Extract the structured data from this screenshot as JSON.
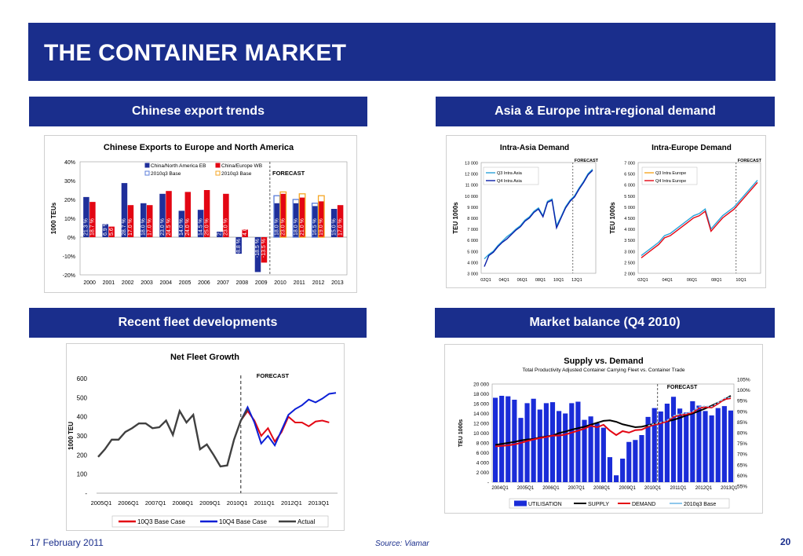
{
  "slide": {
    "title": "THE CONTAINER MARKET",
    "date": "17 February 2011",
    "source": "Source: Viamar",
    "page": "20"
  },
  "sections": {
    "chinese_export": "Chinese export trends",
    "intra_regional": "Asia & Europe intra-regional demand",
    "fleet": "Recent fleet developments",
    "market_balance": "Market balance (Q4 2010)"
  },
  "colors": {
    "brand": "#1a2e8c",
    "blue": "#1f2f9a",
    "red": "#e30613",
    "dark": "#404040",
    "line_blue": "#0b1fd6"
  },
  "chart_data": [
    {
      "id": "chinese_exports",
      "type": "bar",
      "title": "Chinese Exports to Europe and North America",
      "ylabel": "1000 TEUs",
      "ylim": [
        -20,
        40
      ],
      "yticks": [
        "-20%",
        "-10%",
        "0%",
        "10%",
        "20%",
        "30%",
        "40%"
      ],
      "annotation": "FORECAST",
      "categories": [
        "2000",
        "2001",
        "2002",
        "2003",
        "2004",
        "2005",
        "2006",
        "2007",
        "2008",
        "2009",
        "2010",
        "2011",
        "2012",
        "2013"
      ],
      "series": [
        {
          "name": "China/North America EB",
          "values": [
            21.3,
            6.9,
            28.7,
            18.0,
            23.0,
            14.0,
            14.5,
            2.9,
            -8.8,
            -18.5,
            18.0,
            18.0,
            16.5,
            15.0
          ]
        },
        {
          "name": "China/Europe WB",
          "values": [
            18.7,
            5.6,
            17.0,
            17.0,
            24.5,
            24.0,
            25.0,
            23.0,
            4.0,
            -13.5,
            23.0,
            21.0,
            19.0,
            17.0
          ]
        },
        {
          "name": "2010q3 Base",
          "values": [
            null,
            null,
            null,
            null,
            null,
            null,
            null,
            null,
            null,
            null,
            22,
            20,
            18,
            null
          ]
        },
        {
          "name": "2010q3 Base",
          "values": [
            null,
            null,
            null,
            null,
            null,
            null,
            null,
            null,
            null,
            null,
            24,
            23,
            22,
            null
          ]
        }
      ],
      "bar_labels": {
        "China/North America EB": [
          "21.3 %",
          "6.9 %",
          "28.7 %",
          "18.0 %",
          "23.0 %",
          "14.0 %",
          "14.5 %",
          "2.9 %",
          "-8.8 %",
          "-18.5 %",
          "18.0 %",
          "18.0 %",
          "16.5 %",
          "15.0 %"
        ],
        "China/Europe WB": [
          "18.7 %",
          "5.6 %",
          "17.0 %",
          "17.0 %",
          "24.5 %",
          "24.0 %",
          "25.0 %",
          "23.0 %",
          "4.0 %",
          "-13.5 %",
          "23.0 %",
          "21.0 %",
          "19.0 %",
          "17.0 %"
        ]
      }
    },
    {
      "id": "intra_asia",
      "type": "line",
      "title": "Intra-Asia Demand",
      "ylabel": "TEU 1000s",
      "ylim": [
        3000,
        13000
      ],
      "yticks": [
        "3 000",
        "4 000",
        "5 000",
        "6 000",
        "7 000",
        "8 000",
        "9 000",
        "10 000",
        "11 000",
        "12 000",
        "13 000"
      ],
      "xticks": [
        "02Q1",
        "04Q1",
        "06Q1",
        "08Q1",
        "10Q1",
        "12Q1"
      ],
      "annotation": "FORECAST",
      "series": [
        {
          "name": "Q3 Intra Asia",
          "values": [
            4300,
            4700,
            5000,
            5500,
            5900,
            6300,
            6600,
            7000,
            7300,
            7800,
            8100,
            8600,
            8900,
            8200,
            9500,
            9700,
            7300,
            8100,
            9000,
            9600,
            10000,
            10700,
            11300,
            12000,
            12400
          ]
        },
        {
          "name": "Q4 Intra Asia",
          "values": [
            3600,
            4600,
            4900,
            5400,
            5800,
            6100,
            6500,
            6900,
            7200,
            7700,
            8000,
            8500,
            8800,
            8100,
            9400,
            9600,
            7100,
            8000,
            8900,
            9500,
            9900,
            10600,
            11200,
            11900,
            12300
          ]
        }
      ]
    },
    {
      "id": "intra_europe",
      "type": "line",
      "title": "Intra-Europe Demand",
      "ylabel": "TEU 1000s",
      "ylim": [
        2000,
        7000
      ],
      "yticks": [
        "2 000",
        "2 500",
        "3 000",
        "3 500",
        "4 000",
        "4 500",
        "5 000",
        "5 500",
        "6 000",
        "6 500",
        "7 000"
      ],
      "xticks": [
        "02Q1",
        "04Q1",
        "06Q1",
        "08Q1",
        "10Q1"
      ],
      "annotation": "FORECAST",
      "series": [
        {
          "name": "Q3 Intra Europe",
          "values": [
            2800,
            3000,
            3200,
            3400,
            3700,
            3800,
            4000,
            4200,
            4400,
            4600,
            4700,
            4900,
            4000,
            4300,
            4600,
            4800,
            5000,
            5300,
            5600,
            5900,
            6200
          ]
        },
        {
          "name": "Q4 Intra Europe",
          "values": [
            2700,
            2900,
            3100,
            3300,
            3600,
            3700,
            3900,
            4100,
            4300,
            4500,
            4600,
            4800,
            3900,
            4200,
            4500,
            4700,
            4900,
            5200,
            5500,
            5800,
            6100
          ]
        }
      ]
    },
    {
      "id": "net_fleet_growth",
      "type": "line",
      "title": "Net Fleet Growth",
      "ylabel": "1000 TEU",
      "ylim": [
        0,
        600
      ],
      "yticks": [
        "-",
        "100",
        "200",
        "300",
        "400",
        "500",
        "600"
      ],
      "xticks": [
        "2005Q1",
        "2006Q1",
        "2007Q1",
        "2008Q1",
        "2009Q1",
        "2010Q1",
        "2011Q1",
        "2012Q1",
        "2013Q1"
      ],
      "annotation": "FORECAST",
      "series": [
        {
          "name": "10Q3 Base Case",
          "values": [
            null,
            null,
            null,
            null,
            null,
            null,
            null,
            null,
            null,
            null,
            null,
            null,
            null,
            null,
            null,
            null,
            null,
            null,
            null,
            null,
            null,
            380,
            430,
            380,
            300,
            340,
            270,
            320,
            400,
            370,
            370,
            350,
            375,
            380,
            370
          ]
        },
        {
          "name": "10Q4 Base Case",
          "values": [
            null,
            null,
            null,
            null,
            null,
            null,
            null,
            null,
            null,
            null,
            null,
            null,
            null,
            null,
            null,
            null,
            null,
            null,
            null,
            null,
            null,
            380,
            450,
            370,
            260,
            300,
            250,
            330,
            410,
            440,
            460,
            490,
            475,
            495,
            520,
            525
          ]
        },
        {
          "name": "Actual",
          "values": [
            190,
            230,
            280,
            280,
            320,
            340,
            365,
            365,
            340,
            345,
            380,
            305,
            430,
            370,
            410,
            230,
            255,
            200,
            140,
            145,
            280,
            380,
            440
          ]
        }
      ]
    },
    {
      "id": "supply_vs_demand",
      "type": "bar",
      "title": "Supply  vs. Demand",
      "subtitle": "Total Productivity Adjusted Container Carrying Fleet vs. Container Trade",
      "ylabel": "TEU 1000s",
      "ylim": [
        0,
        20000
      ],
      "yticks": [
        "-",
        "2 000",
        "4 000",
        "6 000",
        "8 000",
        "10 000",
        "12 000",
        "14 000",
        "16 000",
        "18 000",
        "20 000"
      ],
      "y2ticks": [
        "55%",
        "60%",
        "65%",
        "70%",
        "75%",
        "80%",
        "85%",
        "90%",
        "95%",
        "100%",
        "105%"
      ],
      "xticks": [
        "2004Q1",
        "2005Q1",
        "2006Q1",
        "2007Q1",
        "2008Q1",
        "2009Q1",
        "2010Q1",
        "2011Q1",
        "2012Q1",
        "2013Q1"
      ],
      "annotation": "FORECAST",
      "series": [
        {
          "name": "UTILISATION",
          "values": [
            17200,
            17600,
            17500,
            16800,
            13100,
            16100,
            17000,
            14800,
            16100,
            16300,
            14500,
            14000,
            16100,
            16400,
            12700,
            13400,
            12000,
            11100,
            5100,
            1400,
            4800,
            8200,
            8600,
            9600,
            13300,
            15100,
            14400,
            16000,
            17400,
            15000,
            14200,
            16500,
            15600,
            14500,
            13600,
            15100,
            15500,
            14600
          ]
        },
        {
          "name": "SUPPLY",
          "values": [
            7600,
            7800,
            8000,
            8200,
            8500,
            8700,
            8800,
            9100,
            9300,
            9500,
            10000,
            10300,
            10700,
            11000,
            11300,
            11700,
            12100,
            12500,
            12600,
            12300,
            11800,
            11500,
            11200,
            11300,
            11600,
            11900,
            12100,
            12400,
            12700,
            13100,
            13600,
            14000,
            14500,
            15000,
            15600,
            16200,
            16800,
            17600
          ]
        },
        {
          "name": "DEMAND",
          "values": [
            7300,
            7400,
            7500,
            7700,
            8000,
            8400,
            8700,
            9000,
            9200,
            9500,
            9500,
            9700,
            10100,
            10500,
            10900,
            11500,
            11200,
            11700,
            10500,
            9600,
            10400,
            10100,
            10600,
            10700,
            11300,
            11700,
            12000,
            12400,
            13300,
            13700,
            13800,
            14200,
            15100,
            15300,
            15200,
            16000,
            16900,
            17100
          ]
        },
        {
          "name": "2010q3 Base",
          "values": [
            null,
            null,
            null,
            null,
            null,
            null,
            null,
            null,
            null,
            null,
            null,
            null,
            null,
            null,
            null,
            null,
            null,
            null,
            null,
            null,
            null,
            null,
            null,
            null,
            11500,
            11900,
            12200,
            12600,
            13500,
            13900,
            14000,
            14400,
            15300,
            15500,
            15400,
            16200,
            17100,
            17300
          ]
        }
      ]
    }
  ]
}
